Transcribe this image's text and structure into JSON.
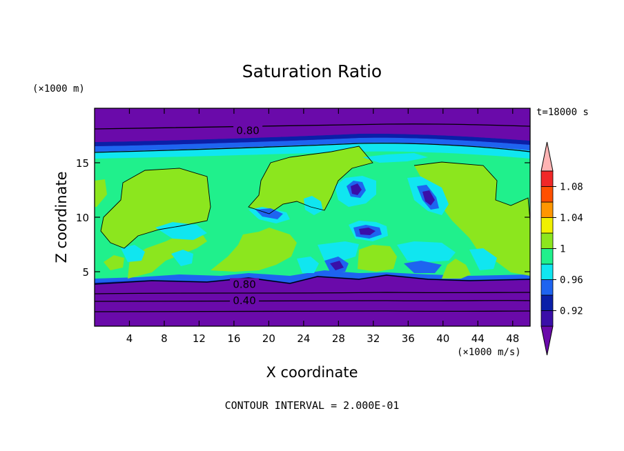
{
  "chart_data": {
    "type": "heatmap",
    "title": "Saturation Ratio",
    "xlabel": "X coordinate",
    "ylabel": "Z coordinate",
    "x_unit": "(×1000 m/s)",
    "y_unit": "(×1000 m)",
    "time_label": "t=18000 s",
    "footer": "CONTOUR INTERVAL = 2.000E-01",
    "xlim": [
      0,
      50
    ],
    "ylim": [
      0,
      20
    ],
    "x_ticks": [
      4,
      8,
      12,
      16,
      20,
      24,
      28,
      32,
      36,
      40,
      44,
      48
    ],
    "y_ticks": [
      5,
      10,
      15
    ],
    "contour_labels": [
      {
        "text": "0.80",
        "x": 17.6,
        "z": 18.0
      },
      {
        "text": "0.80",
        "x": 17.2,
        "z": 3.9
      },
      {
        "text": "0.40",
        "x": 17.2,
        "z": 2.4
      }
    ],
    "colorbar": {
      "levels": [
        0.92,
        0.96,
        1,
        1.04,
        1.08
      ],
      "level_labels": [
        "0.92",
        "0.96",
        "1",
        "1.04",
        "1.08"
      ],
      "colors": [
        "#6a0aaa",
        "#3a0fa8",
        "#0a1fa8",
        "#1e64f0",
        "#10e6f0",
        "#20f08c",
        "#8ce61e",
        "#f0f000",
        "#ff9600",
        "#ff5000",
        "#f02828",
        "#ffb4b4"
      ]
    },
    "bands": [
      {
        "z_from": 0.0,
        "z_to": 4.2,
        "value": "<0.92"
      },
      {
        "z_from": 4.2,
        "z_to": 4.6,
        "value": "0.92-0.96"
      },
      {
        "z_from": 4.6,
        "z_to": 15.6,
        "value": "0.96-1.00 with regions 1.00-1.02"
      },
      {
        "z_from": 15.6,
        "z_to": 16.3,
        "value": "0.96-0.98"
      },
      {
        "z_from": 16.3,
        "z_to": 16.9,
        "value": "0.92-0.96"
      },
      {
        "z_from": 16.9,
        "z_to": 20.0,
        "value": "<0.92"
      }
    ]
  }
}
